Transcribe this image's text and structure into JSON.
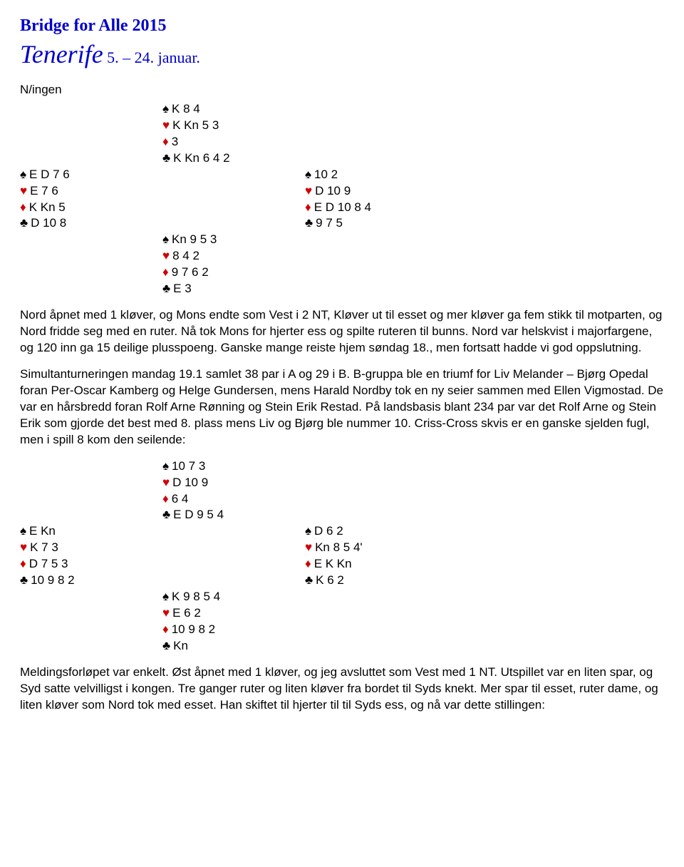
{
  "header": {
    "line1": "Bridge for Alle 2015",
    "line2_big": "Tenerife",
    "line2_small": " 5. – 24. januar."
  },
  "dealer": "N/ingen",
  "deal1": {
    "north": {
      "s": "K 8 4",
      "h": "K Kn 5 3",
      "d": "3",
      "c": "K Kn 6 4 2"
    },
    "west": {
      "s": "E D 7 6",
      "h": "E 7 6",
      "d": "K Kn 5",
      "c": "D 10 8"
    },
    "east": {
      "s": "10 2",
      "h": "D 10 9",
      "d": "E D 10 8 4",
      "c": "9 7 5"
    },
    "south": {
      "s": "Kn 9 5 3",
      "h": "8 4 2",
      "d": "9 7 6 2",
      "c": "E 3"
    }
  },
  "para1": "Nord åpnet med 1 kløver, og Mons endte som Vest i 2 NT, Kløver ut til esset og mer kløver ga fem stikk til motparten, og Nord fridde seg med en ruter. Nå tok Mons for hjerter ess og spilte ruteren til bunns. Nord var helskvist i majorfargene, og 120 inn ga 15 deilige plusspoeng. Ganske mange reiste hjem søndag 18., men fortsatt hadde vi god oppslutning.",
  "para2": "Simultanturneringen mandag 19.1 samlet 38 par i A og 29 i B. B-gruppa ble en triumf for Liv Melander – Bjørg Opedal foran Per-Oscar Kamberg og Helge Gundersen, mens Harald Nordby tok en ny seier sammen med Ellen Vigmostad. De var en hårsbredd foran Rolf Arne Rønning og Stein Erik Restad. På landsbasis blant 234 par var det Rolf Arne og Stein Erik som gjorde det best med 8. plass mens Liv og Bjørg ble nummer 10. Criss-Cross skvis er en ganske sjelden fugl, men i spill 8 kom den seilende:",
  "deal2": {
    "north": {
      "s": "10 7 3",
      "h": "D 10 9",
      "d": "6 4",
      "c": "E D 9 5 4"
    },
    "west": {
      "s": "E Kn",
      "h": "K 7 3",
      "d": "D 7 5 3",
      "c": "10 9 8 2"
    },
    "east": {
      "s": "D 6 2",
      "h": "Kn 8 5 4'",
      "d": "E K Kn",
      "c": "K 6 2"
    },
    "south": {
      "s": "K 9 8 5 4",
      "h": "E 6 2",
      "d": "10 9 8 2",
      "c": "Kn"
    }
  },
  "para3": "Meldingsforløpet var enkelt. Øst åpnet med 1 kløver, og jeg avsluttet som Vest med 1 NT. Utspillet var en liten spar, og Syd satte velvilligst i kongen. Tre ganger ruter og liten kløver fra bordet til Syds knekt. Mer spar til esset, ruter dame, og liten kløver som Nord tok med esset. Han skiftet til hjerter til til Syds ess, og nå var dette stillingen:"
}
